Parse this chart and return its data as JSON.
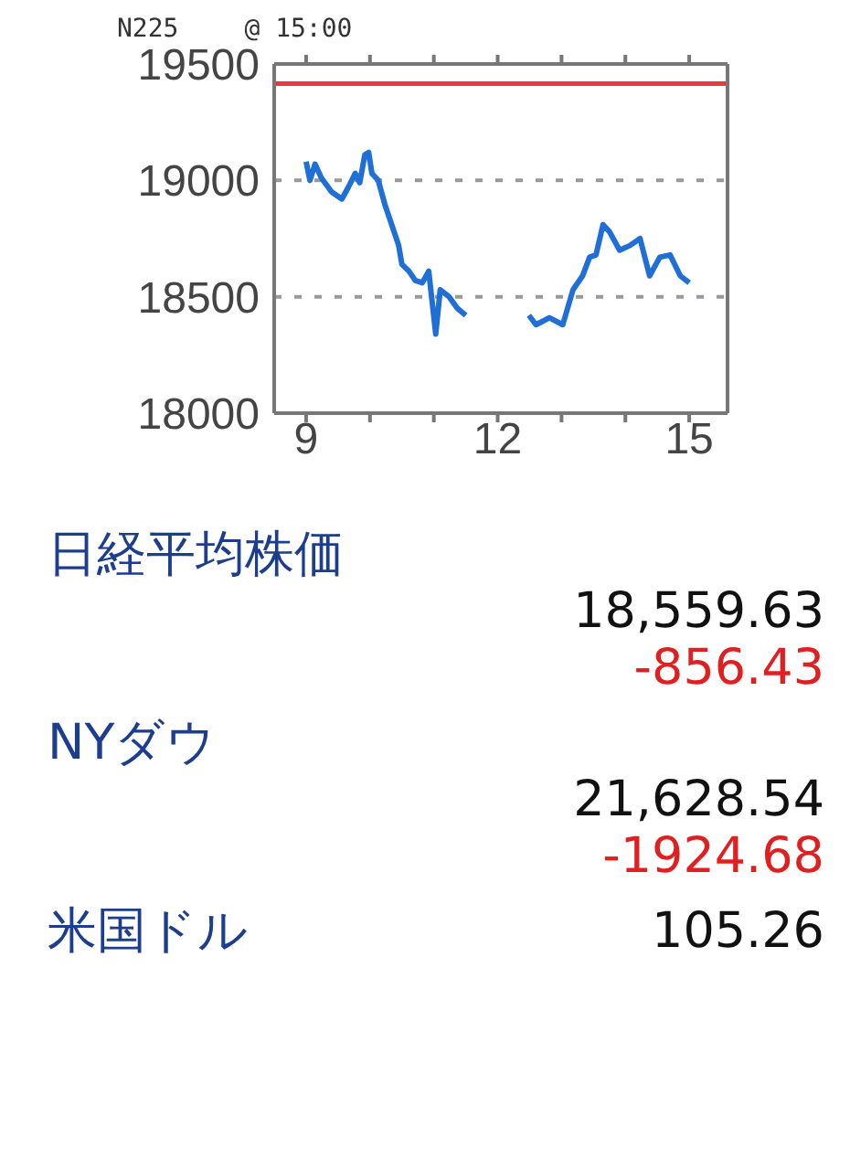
{
  "chart_data": [
    {
      "type": "line",
      "title": "N225",
      "subtitle": "@ 15:00",
      "x": [
        9.0,
        9.06,
        9.14,
        9.24,
        9.4,
        9.56,
        9.66,
        9.77,
        9.84,
        9.92,
        9.98,
        10.03,
        10.13,
        10.24,
        10.34,
        10.45,
        10.5,
        10.61,
        10.71,
        10.82,
        10.92,
        11.03,
        11.1,
        11.24,
        11.37,
        11.5,
        12.0,
        12.49,
        12.6,
        12.81,
        13.02,
        13.18,
        13.33,
        13.44,
        13.54,
        13.65,
        13.75,
        13.91,
        14.07,
        14.23,
        14.38,
        14.54,
        14.7,
        14.86,
        15.0
      ],
      "series": [
        {
          "color": "#1f6fd6",
          "values": [
            19080,
            19000,
            19070,
            19010,
            18950,
            18920,
            18970,
            19030,
            18990,
            19110,
            19120,
            19030,
            19000,
            18890,
            18810,
            18720,
            18640,
            18610,
            18570,
            18560,
            18610,
            18340,
            18530,
            18500,
            18450,
            18420,
            null,
            18420,
            18380,
            18410,
            18380,
            18530,
            18590,
            18670,
            18680,
            18810,
            18780,
            18700,
            18720,
            18750,
            18590,
            18670,
            18680,
            18590,
            18560
          ]
        }
      ],
      "xlim": [
        8.5,
        15.6
      ],
      "xticks": [
        9,
        {
          "value": 10,
          "label": null
        },
        {
          "value": 11,
          "label": null
        },
        12,
        {
          "value": 13,
          "label": null
        },
        {
          "value": 14,
          "label": null
        },
        15
      ],
      "ylim": [
        18000,
        19500
      ],
      "yticks": [
        18000,
        18500,
        19000,
        19500
      ],
      "grid": "y",
      "marker": "none",
      "line_style": "solid",
      "ref_lines": [
        {
          "axis": "y",
          "value": 19416,
          "color": "#e83a3a"
        }
      ]
    },
    {
      "type": "other",
      "annotations": [
        "日経平均株価",
        "18,559.63",
        "-856.43",
        "NYダウ",
        "21,628.54",
        "-1924.68",
        "米国ドル",
        "105.26"
      ]
    }
  ]
}
